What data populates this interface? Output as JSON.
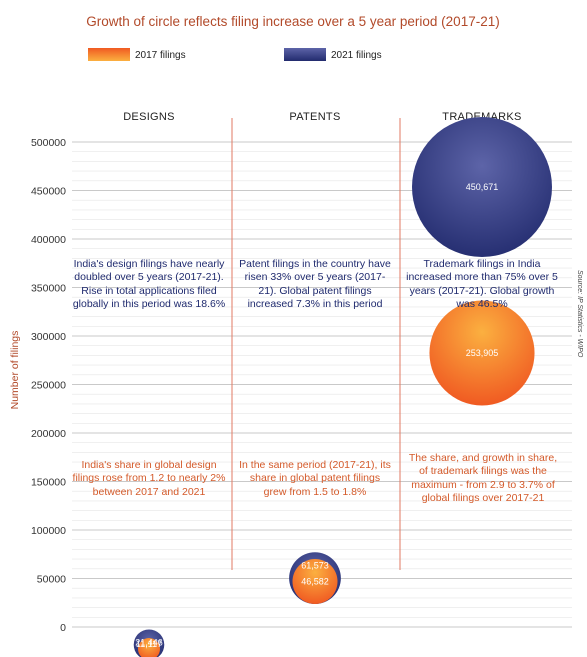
{
  "chart_data": {
    "type": "bubble",
    "title": "Growth of circle reflects filing increase over a 5 year period (2017-21)",
    "ylabel": "Number of filings",
    "ylim": [
      0,
      500000
    ],
    "yticks": [
      "500000",
      "450000",
      "400000",
      "350000",
      "300000",
      "250000",
      "200000",
      "150000",
      "100000",
      "50000",
      "0"
    ],
    "categories": [
      "DESIGNS",
      "PATENTS",
      "TRADEMARKS"
    ],
    "series": [
      {
        "name": "2017 filings",
        "values": [
          11117,
          46582,
          253905
        ],
        "labels": [
          "11,117",
          "46,582",
          "253,905"
        ]
      },
      {
        "name": "2021 filings",
        "values": [
          21446,
          61573,
          450671
        ],
        "labels": [
          "21,446",
          "61,573",
          "450,671"
        ]
      }
    ],
    "colors": {
      "s2017": [
        "#fbb040",
        "#f05a22"
      ],
      "s2021": [
        "#5d64a8",
        "#222b6e"
      ],
      "accent": "#b24a2a",
      "divider": "#e07a63"
    },
    "notes": [
      {
        "color": "blue",
        "text": "India's design filings have nearly doubled over 5 years (2017-21). Rise in total applications filed globally in this period was 18.6%"
      },
      {
        "color": "blue",
        "text": "Patent filings in the country have risen 33% over 5 years (2017-21). Global patent filings increased 7.3% in this period"
      },
      {
        "color": "blue",
        "text": "Trademark filings in India increased more than 75% over 5 years (2017-21). Global growth was 46.5%"
      },
      {
        "color": "orange",
        "text": "India's share in global design filings rose from 1.2 to nearly 2% between 2017 and 2021"
      },
      {
        "color": "orange",
        "text": "In the same period (2017-21), its share in global patent filings grew from 1.5 to 1.8%"
      },
      {
        "color": "orange",
        "text": "The share, and growth in share, of trademark filings was the maximum - from 2.9 to 3.7% of global filings over 2017-21"
      }
    ],
    "source": "Source: IP Statistics - WIPO"
  }
}
